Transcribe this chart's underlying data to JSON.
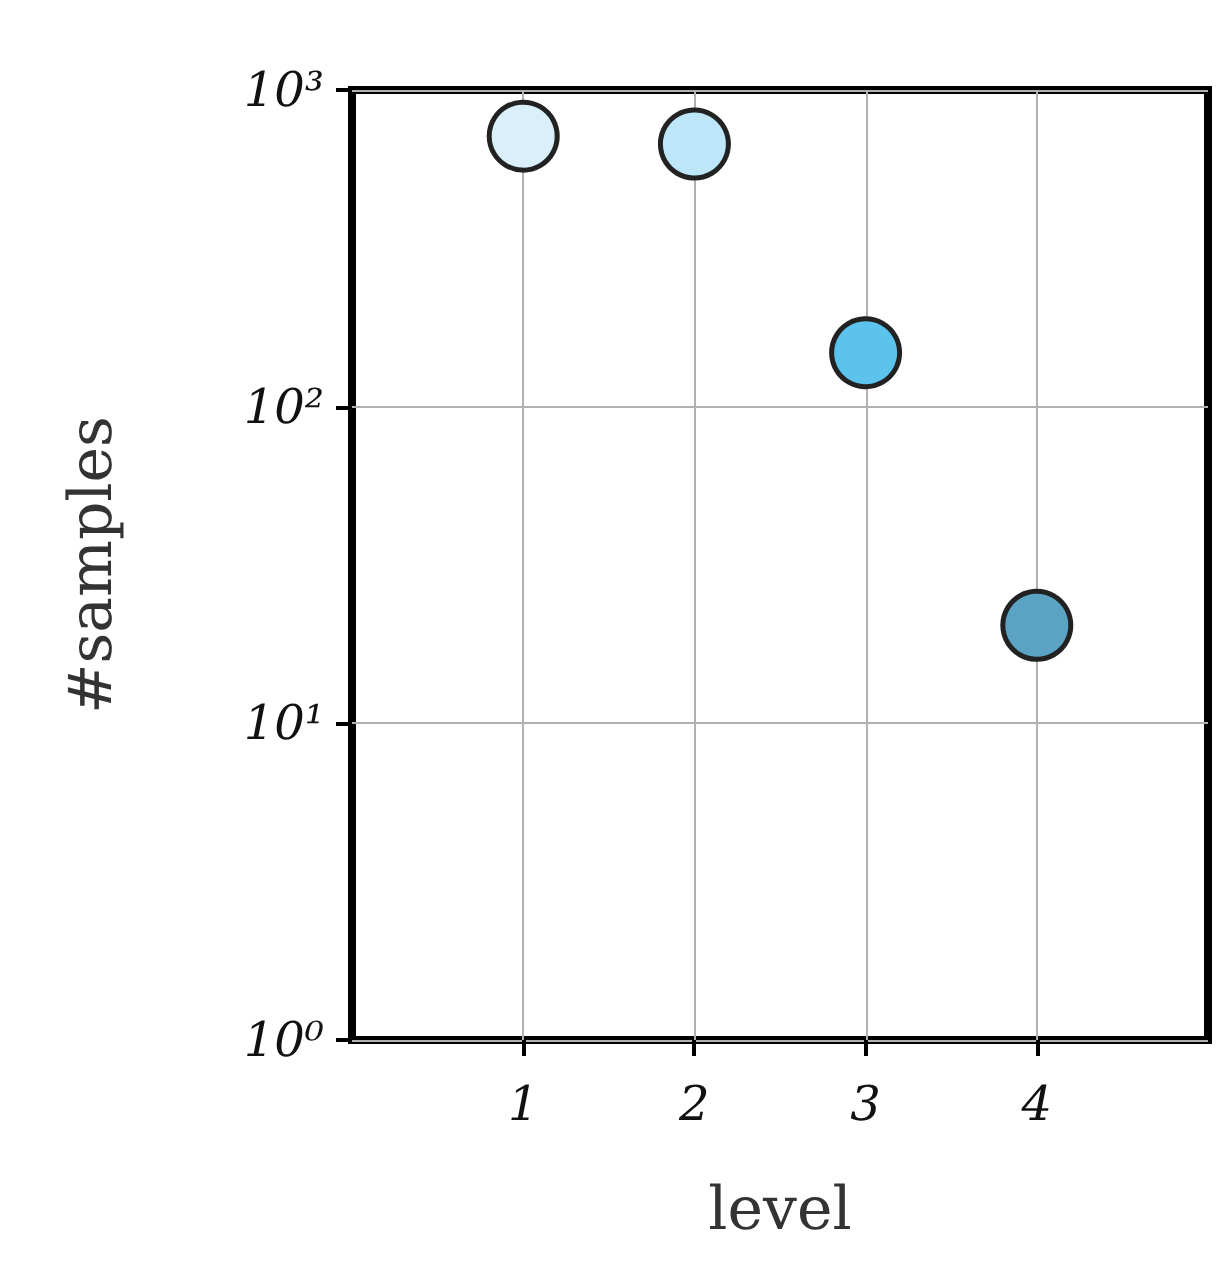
{
  "chart_data": {
    "type": "scatter",
    "xlabel": "level",
    "ylabel": "#samples",
    "x": [
      1,
      2,
      3,
      4
    ],
    "values": [
      715,
      675,
      148,
      20.4
    ],
    "colors": [
      "#d9f0fb",
      "#bde6f8",
      "#5bc3ec",
      "#5aa3c4"
    ],
    "xlim": [
      0,
      5
    ],
    "xticks": [
      1,
      2,
      3,
      4
    ],
    "ylim": [
      1,
      1000
    ],
    "yticks": [
      {
        "value": 1,
        "label": "10⁰"
      },
      {
        "value": 10,
        "label": "10¹"
      },
      {
        "value": 100,
        "label": "10²"
      },
      {
        "value": 1000,
        "label": "10³"
      }
    ],
    "log": "y",
    "grid": true,
    "marker": "circle"
  }
}
